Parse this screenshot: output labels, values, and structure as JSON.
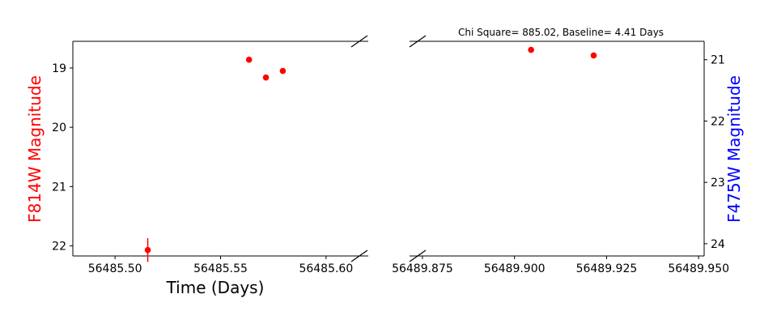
{
  "chart_data": [
    {
      "type": "scatter",
      "title": "",
      "xlabel": "Time (Days)",
      "ylabel": "F814W Magnitude",
      "ylabel_color": "#ff0000",
      "xlim": [
        56485.48,
        56485.62
      ],
      "ylim": [
        22.17,
        18.55
      ],
      "y_inverted": true,
      "xticks": [
        56485.5,
        56485.55,
        56485.6
      ],
      "xtick_labels": [
        "56485.50",
        "56485.55",
        "56485.60"
      ],
      "yticks": [
        19,
        20,
        21,
        22
      ],
      "ytick_labels": [
        "19",
        "20",
        "21",
        "22"
      ],
      "grid": false,
      "series": [
        {
          "color": "#ff0000",
          "points": [
            {
              "x": 56485.5155,
              "y": 22.07,
              "err": 0.2
            },
            {
              "x": 56485.5635,
              "y": 18.86,
              "err": 0
            },
            {
              "x": 56485.5715,
              "y": 19.16,
              "err": 0
            },
            {
              "x": 56485.5795,
              "y": 19.05,
              "err": 0
            }
          ]
        }
      ]
    },
    {
      "type": "scatter",
      "title": "Chi Square= 885.02, Baseline= 4.41 Days",
      "xlabel": "",
      "ylabel": "F475W Magnitude",
      "ylabel_color": "#0000ff",
      "xlim": [
        56489.8715,
        56489.9515
      ],
      "ylim": [
        24.2,
        20.7
      ],
      "y_inverted": true,
      "y_axis_side": "right",
      "xticks": [
        56489.875,
        56489.9,
        56489.925,
        56489.95
      ],
      "xtick_labels": [
        "56489.875",
        "56489.900",
        "56489.925",
        "56489.950"
      ],
      "yticks": [
        21,
        22,
        23,
        24
      ],
      "ytick_labels": [
        "21",
        "22",
        "23",
        "24"
      ],
      "grid": false,
      "series": [
        {
          "color": "#ff0000",
          "points": [
            {
              "x": 56489.9045,
              "y": 20.84,
              "err": 0
            },
            {
              "x": 56489.9215,
              "y": 20.93,
              "err": 0
            }
          ]
        }
      ]
    }
  ]
}
